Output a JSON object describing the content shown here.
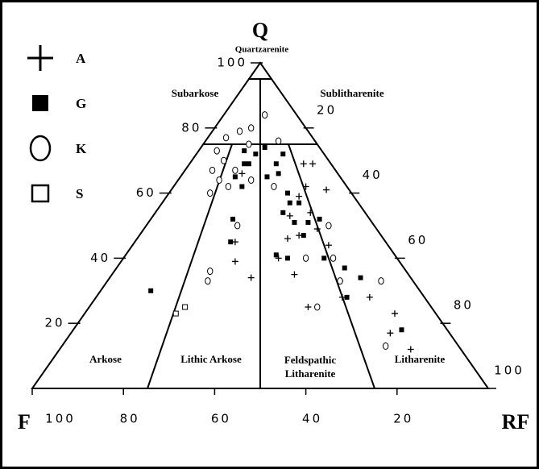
{
  "chart_data": {
    "type": "ternary",
    "vertices": {
      "top": "Q",
      "left": "F",
      "right": "RF"
    },
    "qticks": [
      20,
      40,
      60,
      80,
      100
    ],
    "rfticks": [
      20,
      40,
      60,
      80,
      100
    ],
    "fticks": [
      100,
      80,
      60,
      40,
      20
    ],
    "fields": [
      "Quartzarenite",
      "Subarkose",
      "Sublitharenite",
      "Arkose",
      "Lithic Arkose",
      "Feldspathic Litharenite",
      "Litharenite"
    ],
    "series": [
      {
        "name": "A",
        "marker": "plus",
        "color": "#000000",
        "q": [
          69,
          69,
          61,
          62,
          59,
          53,
          54,
          46,
          47,
          49,
          44,
          33,
          28,
          28,
          25,
          23,
          17,
          12,
          35,
          34,
          39,
          45,
          66,
          40
        ],
        "rf": [
          25,
          27,
          34,
          29,
          29,
          30,
          34,
          33,
          35,
          38,
          43,
          51,
          54,
          60,
          48,
          68,
          70,
          77,
          40,
          31,
          25,
          22,
          13,
          34
        ]
      },
      {
        "name": "G",
        "marker": "square",
        "color": "#000000",
        "q": [
          73,
          72,
          74,
          69,
          69,
          65,
          62,
          65,
          69,
          72,
          66,
          60,
          57,
          57,
          54,
          51,
          51,
          52,
          47,
          41,
          40,
          40,
          37,
          34,
          28,
          18,
          30,
          52,
          45
        ],
        "rf": [
          10,
          13,
          14,
          12,
          13,
          12,
          15,
          19,
          19,
          19,
          21,
          26,
          28,
          30,
          28,
          32,
          35,
          37,
          36,
          33,
          36,
          44,
          50,
          55,
          55,
          72,
          11,
          18,
          21
        ]
      },
      {
        "name": "K",
        "marker": "circle",
        "color": "#000000",
        "q": [
          77,
          79,
          80,
          84,
          75,
          73,
          70,
          67,
          64,
          60,
          67,
          62,
          64,
          62,
          76,
          36,
          33,
          40,
          50,
          40,
          33,
          33,
          25,
          13,
          50
        ],
        "rf": [
          4,
          6,
          8,
          9,
          10,
          4,
          7,
          6,
          9,
          9,
          11,
          12,
          16,
          22,
          16,
          21,
          22,
          40,
          40,
          46,
          51,
          60,
          50,
          71,
          20
        ]
      },
      {
        "name": "S",
        "marker": "open-square",
        "color": "#000000",
        "q": [
          23,
          25
        ],
        "rf": [
          20,
          21
        ]
      }
    ]
  }
}
